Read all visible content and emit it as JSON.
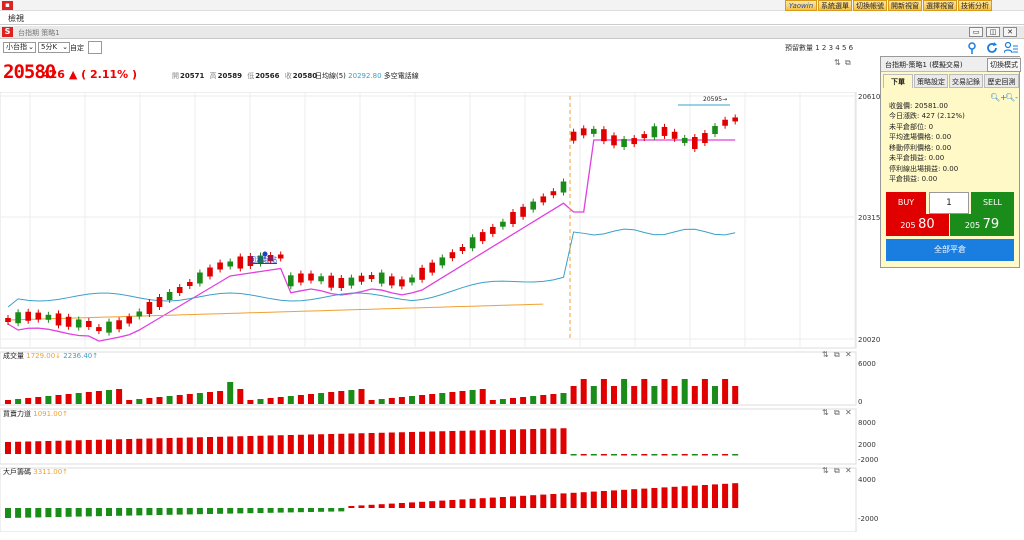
{
  "topbar": {
    "buttons": [
      "Yaowin",
      "系統選單",
      "切換帳號",
      "開新視窗",
      "選擇視窗",
      "技術分析"
    ]
  },
  "menubar": {
    "view": "檢視"
  },
  "window": {
    "title": "台指期 策略1",
    "icon": "S",
    "controls": {
      "minimize": "▭",
      "restore": "◫",
      "close": "✕"
    }
  },
  "toolbar": {
    "product": "小台指",
    "interval": "5分K",
    "custom": "自定",
    "qty_label": "預留數量 1 2 3 4 5 6"
  },
  "price_header": {
    "last": "20580",
    "change": "426",
    "arrow": "▲",
    "pct": "( 2.11% )",
    "open_label": "開",
    "open": "20571",
    "high_label": "高",
    "high": "20589",
    "low_label": "低",
    "low": "20566",
    "close_label": "收",
    "close": "20580",
    "ma_label": "日均線(5)",
    "ma_value": "20292.80",
    "ma_suffix": "多空電話線"
  },
  "panel": {
    "title": "台指期-策略1 (模擬交易)",
    "mode_button": "切換模式",
    "tabs": [
      "下單",
      "策略設定",
      "交易記錄",
      "歷史回測"
    ],
    "info": [
      "收盤價: 20581.00",
      "今日漲跌: 427 (2.12%)",
      "未平倉部位: 0",
      "平均進場價格: 0.00",
      "移動停利價格: 0.00",
      "未平倉損益: 0.00",
      "停利線出場損益: 0.00",
      "平倉損益: 0.00"
    ],
    "buy_label": "BUY",
    "sell_label": "SELL",
    "qty": "1",
    "bid_prefix": "205",
    "bid": "80",
    "ask_prefix": "205",
    "ask": "79",
    "close_all": "全部平倉"
  },
  "main_chart": {
    "y_labels": [
      "20610",
      "20315",
      "20020"
    ],
    "ref_label": "20595→",
    "marker_label": "回測起點"
  },
  "volume_panel": {
    "title": "成交量",
    "v1": "1729.00↓",
    "v2": "2236.40↑",
    "y_labels": [
      "6000",
      "0"
    ]
  },
  "buysell_panel": {
    "title": "買賣力道",
    "v1": "1091.00↑",
    "y_labels": [
      "8000",
      "2000",
      "-2000"
    ]
  },
  "big_player_panel": {
    "title": "大戶籌碼",
    "v1": "3311.00↑",
    "y_labels": [
      "4000",
      "-2000"
    ]
  },
  "colors": {
    "up": "#e00000",
    "down": "#1a8c1a",
    "stop_line": "#e040e0",
    "ma_blue": "#3aa0c8",
    "ma_orange": "#f0a030",
    "accent_blue": "#1a7de0"
  }
}
